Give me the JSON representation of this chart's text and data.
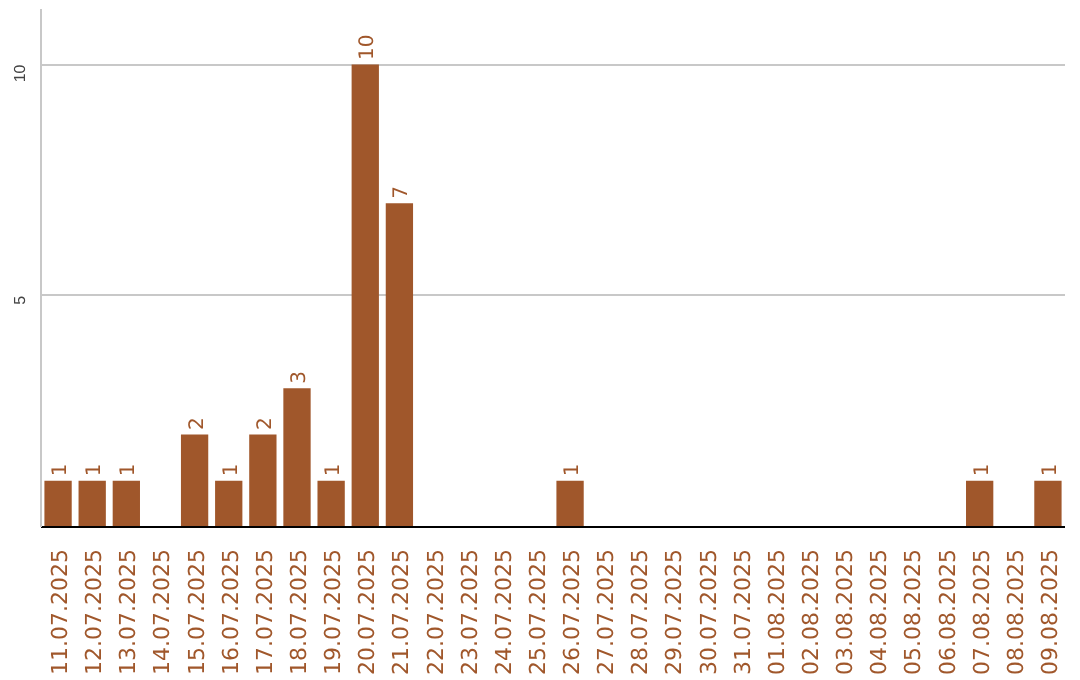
{
  "chart_data": {
    "type": "bar",
    "categories": [
      "11.07.2025",
      "12.07.2025",
      "13.07.2025",
      "14.07.2025",
      "15.07.2025",
      "16.07.2025",
      "17.07.2025",
      "18.07.2025",
      "19.07.2025",
      "20.07.2025",
      "21.07.2025",
      "22.07.2025",
      "23.07.2025",
      "24.07.2025",
      "25.07.2025",
      "26.07.2025",
      "27.07.2025",
      "28.07.2025",
      "29.07.2025",
      "30.07.2025",
      "31.07.2025",
      "01.08.2025",
      "02.08.2025",
      "03.08.2025",
      "04.08.2025",
      "05.08.2025",
      "06.08.2025",
      "07.08.2025",
      "08.08.2025",
      "09.08.2025"
    ],
    "values": [
      1,
      1,
      1,
      0,
      2,
      1,
      2,
      3,
      1,
      10,
      7,
      0,
      0,
      0,
      0,
      1,
      0,
      0,
      0,
      0,
      0,
      0,
      0,
      0,
      0,
      0,
      0,
      1,
      0,
      1
    ],
    "value_labels": [
      "1",
      "1",
      "1",
      null,
      "2",
      "1",
      "2",
      "3",
      "1",
      "10",
      "7",
      null,
      null,
      null,
      null,
      "1",
      null,
      null,
      null,
      null,
      null,
      null,
      null,
      null,
      null,
      null,
      null,
      "1",
      null,
      "1"
    ],
    "color": "#a0572b",
    "ylim": [
      0,
      11.2
    ],
    "yticks": [
      5,
      10
    ],
    "grid": "y"
  }
}
